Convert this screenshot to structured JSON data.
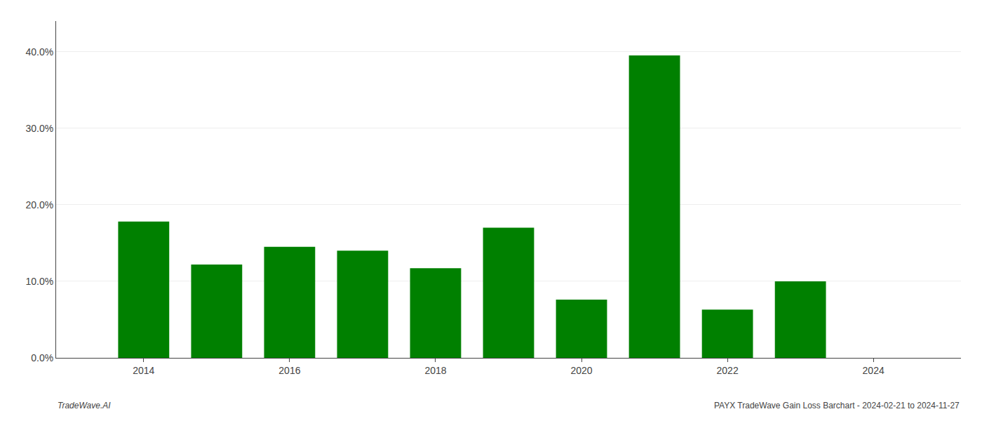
{
  "chart_data": {
    "type": "bar",
    "x": [
      2014,
      2015,
      2016,
      2017,
      2018,
      2019,
      2020,
      2021,
      2022,
      2023
    ],
    "values": [
      0.178,
      0.122,
      0.145,
      0.14,
      0.117,
      0.17,
      0.076,
      0.395,
      0.063,
      0.1
    ],
    "color": "#008000",
    "xlim": [
      2012.8,
      2025.2
    ],
    "xticks": [
      2014,
      2016,
      2018,
      2020,
      2022,
      2024
    ],
    "ylim": [
      0,
      0.44
    ],
    "yticks": [
      {
        "value": 0.0,
        "label": "0.0%"
      },
      {
        "value": 0.1,
        "label": "10.0%"
      },
      {
        "value": 0.2,
        "label": "20.0%"
      },
      {
        "value": 0.3,
        "label": "30.0%"
      },
      {
        "value": 0.4,
        "label": "40.0%"
      }
    ],
    "grid": "y",
    "annotations": [
      "TradeWave.AI",
      "PAYX TradeWave Gain Loss Barchart - 2024-02-21 to 2024-11-27"
    ]
  }
}
